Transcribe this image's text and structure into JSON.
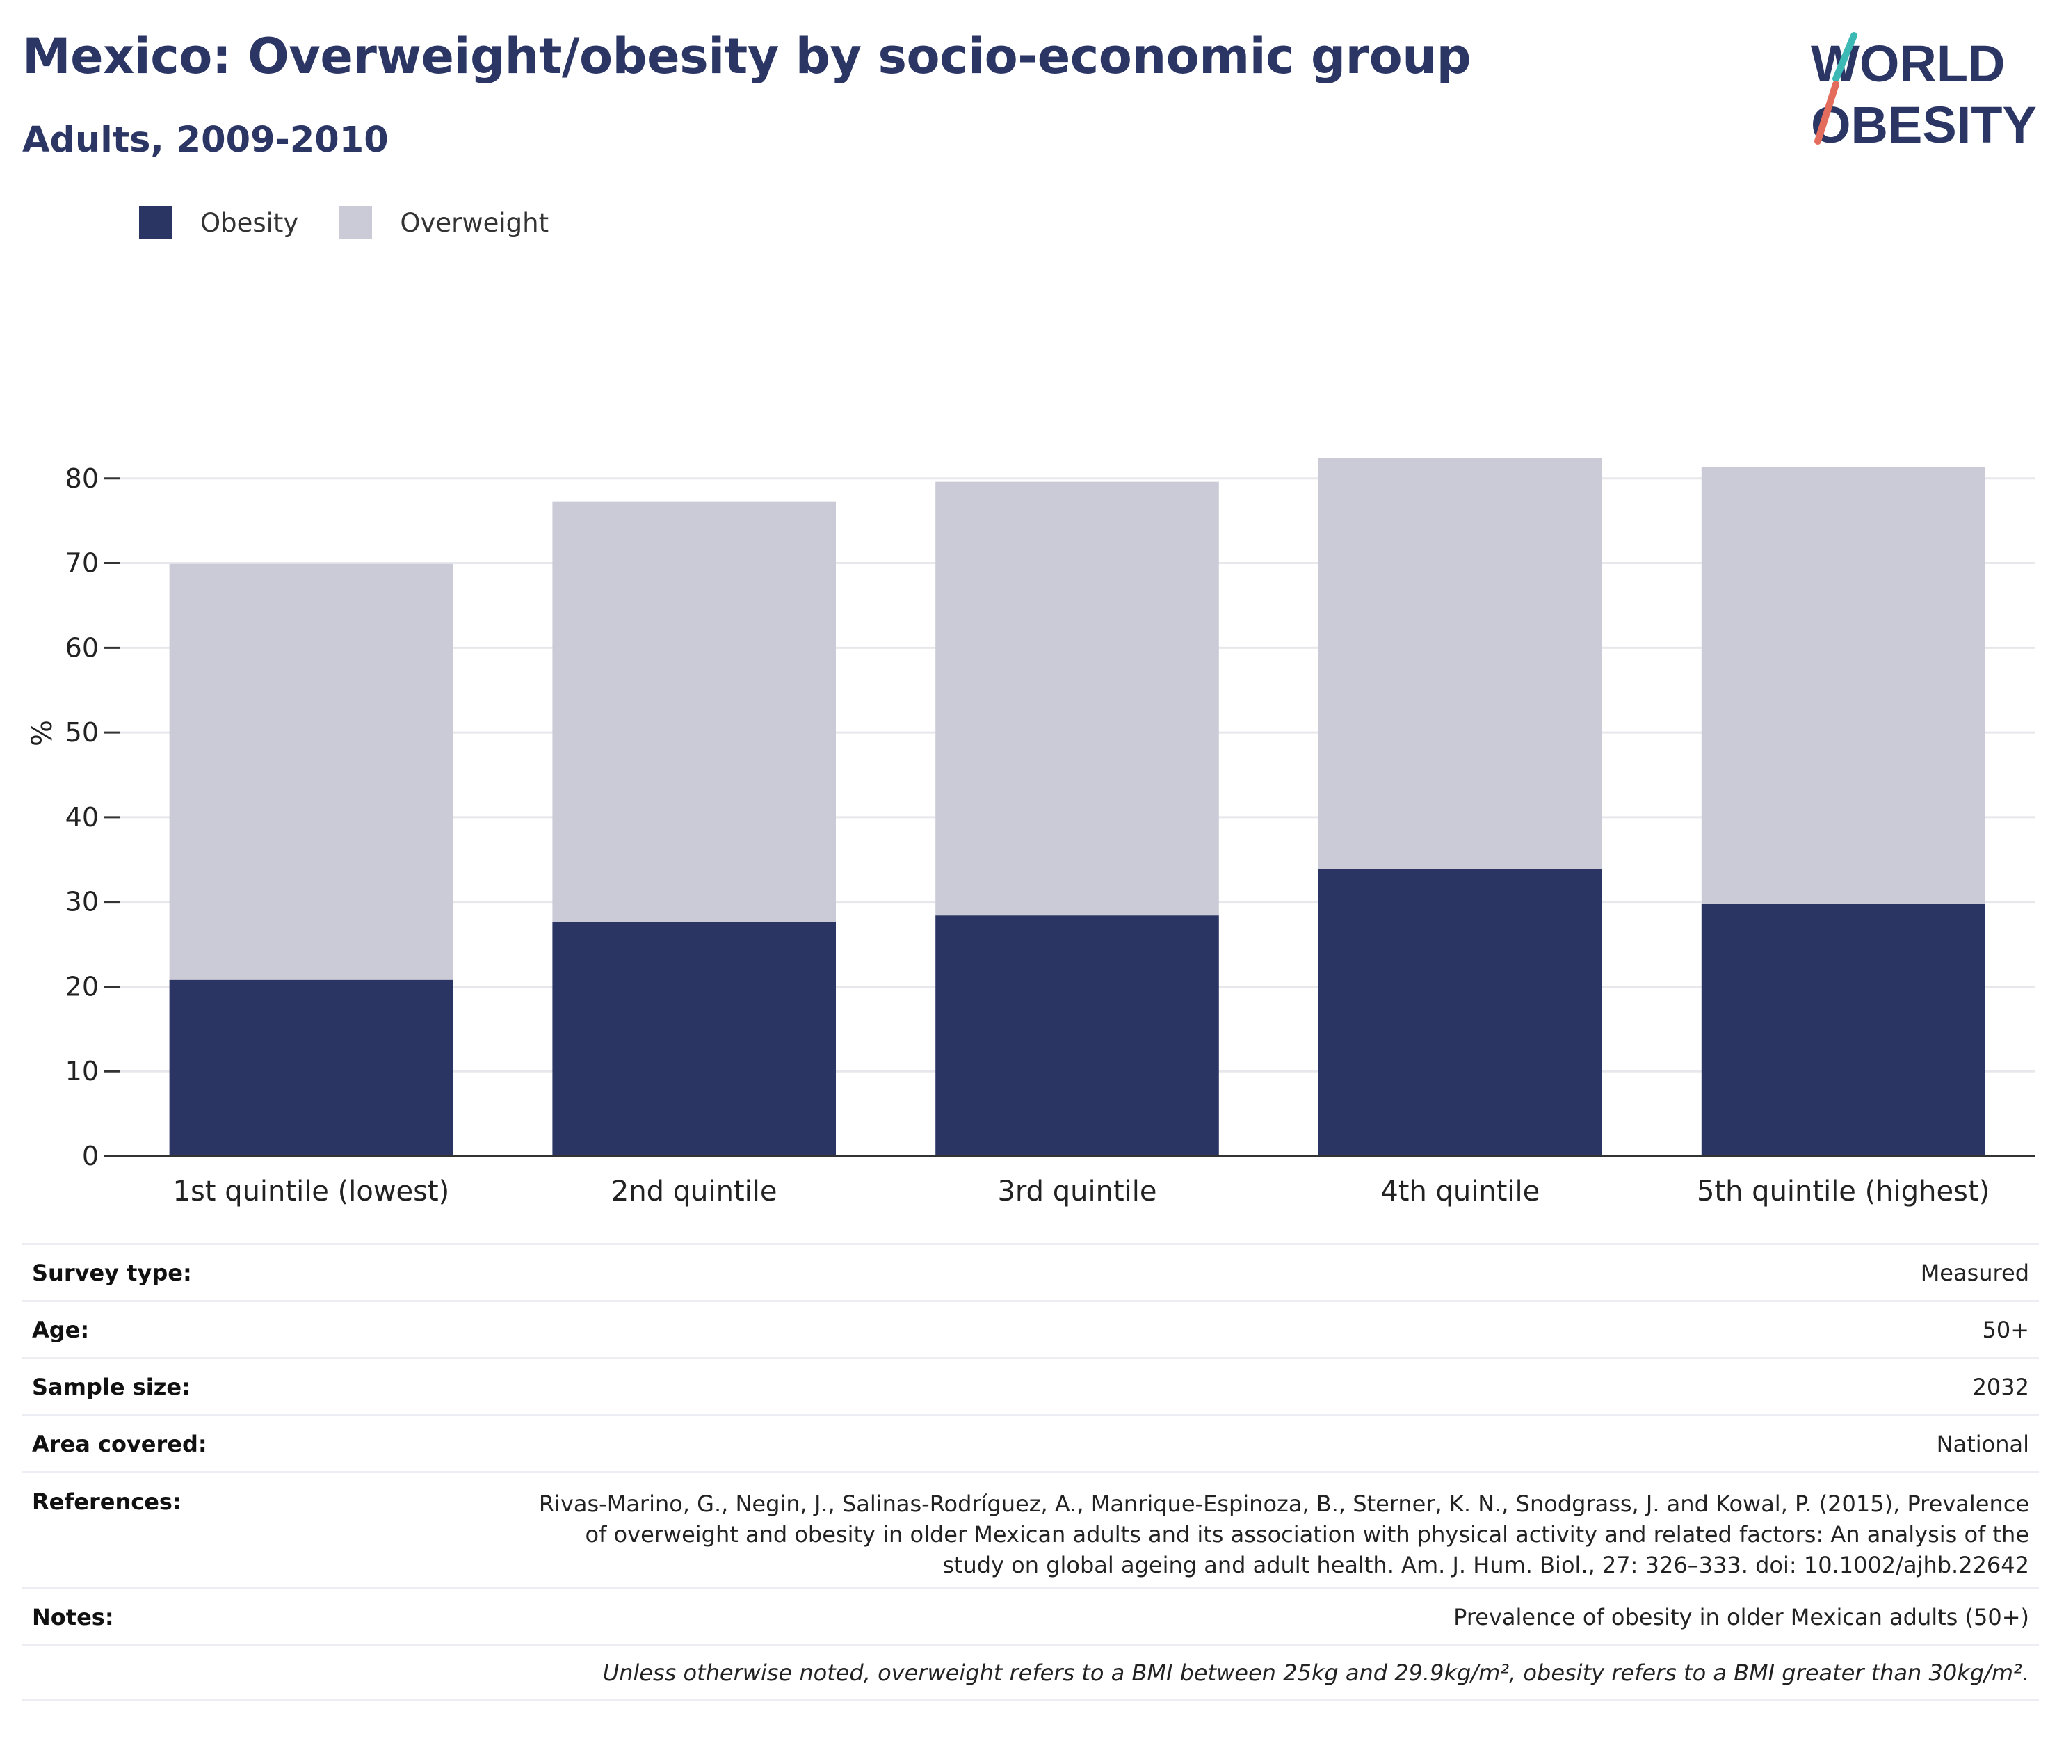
{
  "header": {
    "title": "Mexico: Overweight/obesity by socio-economic group",
    "subtitle": "Adults, 2009-2010"
  },
  "logo": {
    "line1": "WORLD",
    "line2": "OBESITY"
  },
  "colors": {
    "obesity": "#2a3563",
    "overweight": "#cacbd7",
    "title": "#2b3664",
    "grid": "#e8e8ec",
    "axis": "#333333"
  },
  "chart_data": {
    "type": "bar",
    "stacked": true,
    "categories": [
      "1st quintile (lowest)",
      "2nd quintile",
      "3rd quintile",
      "4th quintile",
      "5th quintile (highest)"
    ],
    "series": [
      {
        "name": "Obesity",
        "values": [
          20.8,
          27.6,
          28.4,
          33.9,
          29.8
        ]
      },
      {
        "name": "Overweight",
        "values": [
          49.1,
          49.7,
          51.2,
          48.5,
          51.5
        ]
      }
    ],
    "ylabel": "%",
    "ylim": [
      0,
      90
    ],
    "yticks": [
      0,
      10,
      20,
      30,
      40,
      50,
      60,
      70,
      80
    ],
    "grid": true,
    "legend_position": "top-left"
  },
  "meta": {
    "survey_type": {
      "label": "Survey type:",
      "value": "Measured"
    },
    "age": {
      "label": "Age:",
      "value": "50+"
    },
    "sample_size": {
      "label": "Sample size:",
      "value": "2032"
    },
    "area": {
      "label": "Area covered:",
      "value": "National"
    },
    "references": {
      "label": "References:",
      "value": "Rivas-Marino, G., Negin, J., Salinas-Rodríguez, A., Manrique-Espinoza, B., Sterner, K. N., Snodgrass, J. and Kowal, P. (2015), Prevalence of overweight and obesity in older Mexican adults and its association with physical activity and related factors: An analysis of the study on global ageing and adult health. Am. J. Hum. Biol., 27: 326–333. doi: 10.1002/ajhb.22642"
    },
    "notes": {
      "label": "Notes:",
      "value": "Prevalence of obesity in older Mexican adults (50+)"
    },
    "footnote": "Unless otherwise noted, overweight refers to a BMI between 25kg and 29.9kg/m², obesity refers to a BMI greater than 30kg/m²."
  }
}
